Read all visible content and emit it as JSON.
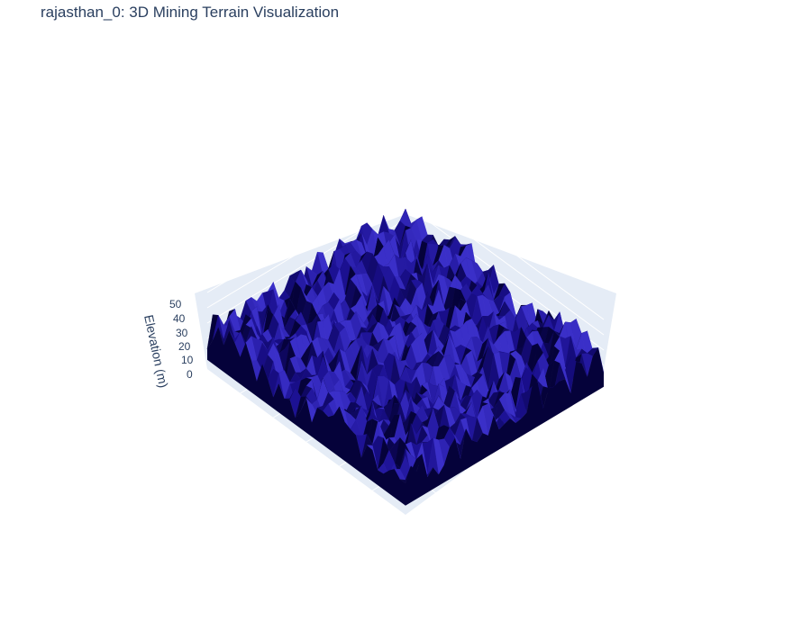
{
  "chart_data": {
    "type": "surface",
    "title": "rajasthan_0: 3D Mining Terrain Visualization",
    "zlabel": "Elevation (m)",
    "zticks": [
      "0",
      "10",
      "20",
      "30",
      "40",
      "50"
    ],
    "zlim": [
      0,
      50
    ],
    "grid": true,
    "colors": {
      "surface": "#1a0f8f",
      "surface_dark": "#05023a",
      "surface_light": "#3a2fc8",
      "scene_background": "#e5ecf6",
      "gridline": "#ffffff",
      "text": "#2a3f5f"
    }
  }
}
